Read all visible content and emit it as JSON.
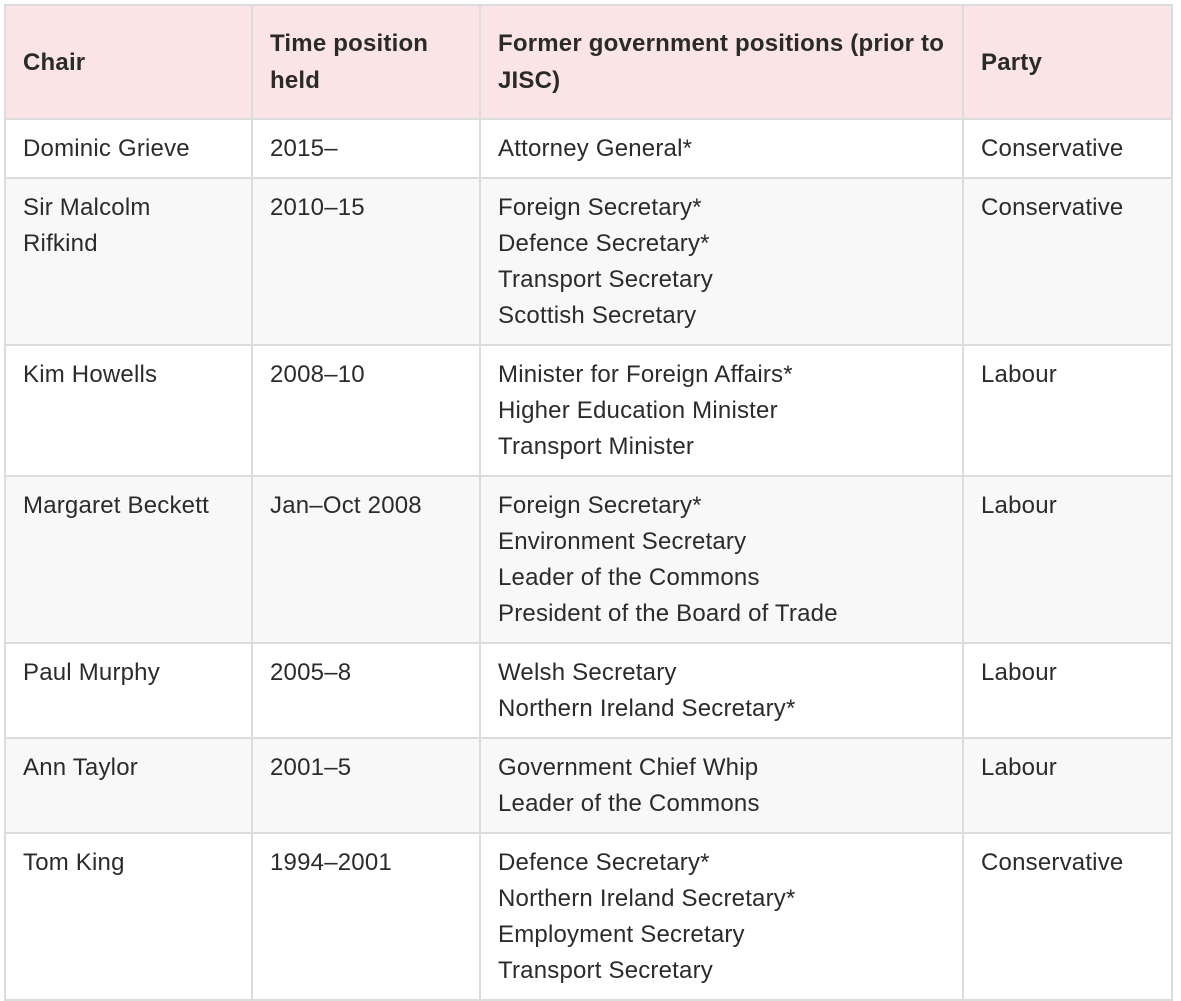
{
  "headers": {
    "chair": "Chair",
    "time": "Time position held",
    "positions": "Former government positions (prior to JISC)",
    "party": "Party"
  },
  "rows": [
    {
      "chair": "Dominic Grieve",
      "time": "2015–",
      "positions": [
        "Attorney General*"
      ],
      "party": "Conservative"
    },
    {
      "chair": "Sir Malcolm Rifkind",
      "time": "2010–15",
      "positions": [
        "Foreign Secretary*",
        "Defence Secretary*",
        "Transport Secretary",
        "Scottish Secretary"
      ],
      "party": "Conservative"
    },
    {
      "chair": "Kim Howells",
      "time": "2008–10",
      "positions": [
        "Minister for Foreign Affairs*",
        "Higher Education Minister",
        "Transport Minister"
      ],
      "party": "Labour"
    },
    {
      "chair": "Margaret Beckett",
      "time": "Jan–Oct 2008",
      "positions": [
        "Foreign Secretary*",
        "Environment Secretary",
        "Leader of the Commons",
        "President of the Board of Trade"
      ],
      "party": "Labour"
    },
    {
      "chair": "Paul Murphy",
      "time": "2005–8",
      "positions": [
        "Welsh Secretary",
        "Northern Ireland Secretary*"
      ],
      "party": "Labour"
    },
    {
      "chair": "Ann Taylor",
      "time": "2001–5",
      "positions": [
        "Government Chief Whip",
        "Leader of the Commons"
      ],
      "party": "Labour"
    },
    {
      "chair": "Tom King",
      "time": "1994–2001",
      "positions": [
        "Defence Secretary*",
        "Northern Ireland Secretary*",
        "Employment Secretary",
        "Transport Secretary"
      ],
      "party": "Conservative"
    }
  ]
}
